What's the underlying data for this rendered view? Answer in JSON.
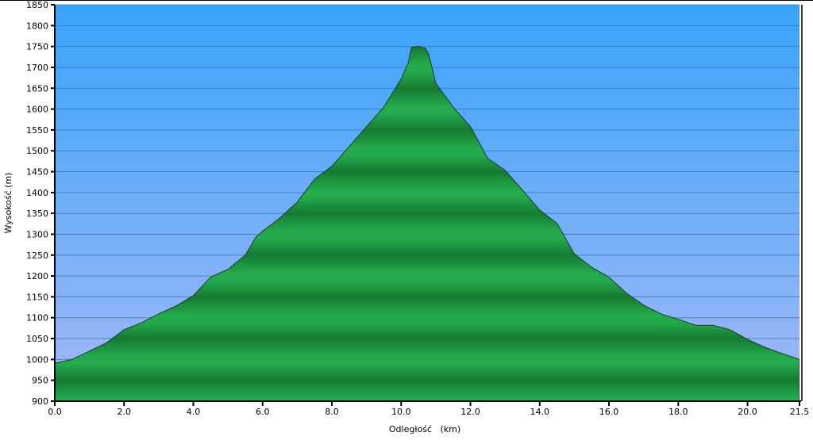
{
  "chart_data": {
    "type": "area",
    "title": "",
    "xlabel": "Odległość   (km)",
    "ylabel": "Wysokość (m)",
    "xlim": [
      0,
      21.5
    ],
    "ylim": [
      900,
      1850
    ],
    "x_ticks": [
      "0.0",
      "2.0",
      "4.0",
      "6.0",
      "8.0",
      "10.0",
      "12.0",
      "14.0",
      "16.0",
      "18.0",
      "20.0",
      "21.5"
    ],
    "y_ticks": [
      "900",
      "950",
      "1000",
      "1050",
      "1100",
      "1150",
      "1200",
      "1250",
      "1300",
      "1350",
      "1400",
      "1450",
      "1500",
      "1550",
      "1600",
      "1650",
      "1700",
      "1750",
      "1800",
      "1850"
    ],
    "grid": true,
    "colors": {
      "sky_top": "#38a4fc",
      "sky_bottom": "#a4b8f6",
      "fill": "#22a84a",
      "fill_dark": "#157a33",
      "outline": "#1e3a2a"
    },
    "x": [
      0,
      0.5,
      1,
      1.5,
      2,
      2.5,
      3,
      3.5,
      4,
      4.5,
      5,
      5.5,
      5.8,
      6,
      6.5,
      7,
      7.5,
      8,
      8.5,
      9,
      9.5,
      10,
      10.2,
      10.3,
      10.5,
      10.7,
      10.8,
      11,
      11.5,
      12,
      12.5,
      13,
      13.5,
      14,
      14.5,
      15,
      15.5,
      16,
      16.5,
      17,
      17.5,
      18,
      18.5,
      19,
      19.5,
      20,
      20.5,
      21,
      21.5
    ],
    "y": [
      991,
      1000,
      1020,
      1040,
      1071,
      1088,
      1109,
      1128,
      1153,
      1197,
      1216,
      1250,
      1292,
      1307,
      1339,
      1377,
      1432,
      1463,
      1510,
      1558,
      1605,
      1672,
      1710,
      1748,
      1750,
      1746,
      1730,
      1662,
      1605,
      1558,
      1482,
      1453,
      1406,
      1358,
      1326,
      1253,
      1221,
      1197,
      1159,
      1130,
      1109,
      1096,
      1082,
      1082,
      1071,
      1048,
      1029,
      1014,
      1000
    ]
  }
}
